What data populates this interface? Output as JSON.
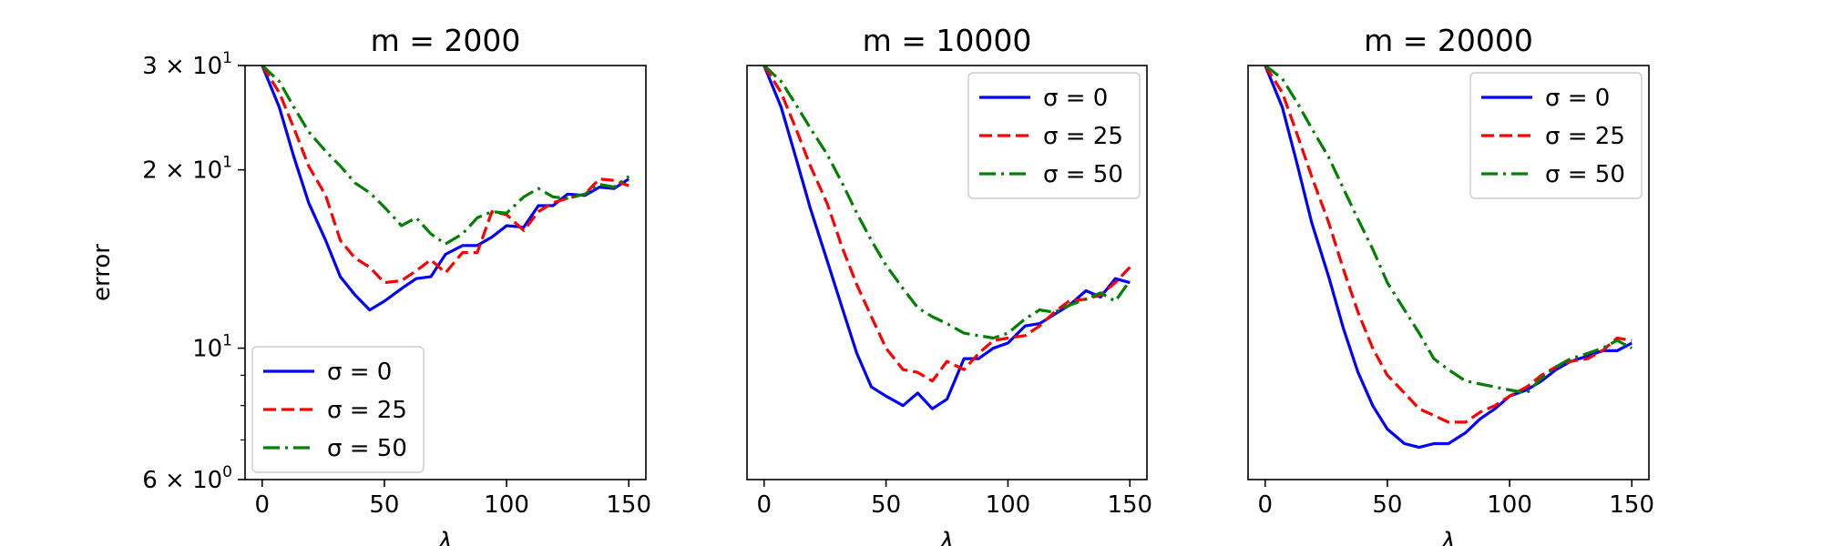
{
  "chart_data": [
    {
      "type": "line",
      "title": "m = 2000",
      "xlabel": "λ",
      "ylabel": "error",
      "xlim": [
        -7,
        157
      ],
      "ylim": [
        6,
        30
      ],
      "yscale": "log",
      "xticks": [
        0,
        50,
        100,
        150
      ],
      "xtick_labels": [
        "0",
        "50",
        "100",
        "150"
      ],
      "yticks": [
        6,
        10,
        20,
        30
      ],
      "ytick_labels": [
        {
          "base": "6 × 10",
          "exp": "0"
        },
        {
          "base": "10",
          "exp": "1"
        },
        {
          "base": "2 × 10",
          "exp": "1"
        },
        {
          "base": "3 × 10",
          "exp": "1"
        }
      ],
      "show_yticks": true,
      "legend": "lower-left",
      "series": [
        {
          "name": "σ = 0",
          "color": "#0000ff",
          "dash": "solid",
          "x": [
            0,
            7,
            13,
            19,
            26,
            32,
            38,
            44,
            50,
            57,
            63,
            69,
            75,
            82,
            88,
            94,
            100,
            107,
            113,
            119,
            125,
            132,
            138,
            144,
            150
          ],
          "y": [
            30,
            25.5,
            21,
            17.6,
            15.2,
            13.2,
            12.3,
            11.6,
            12,
            12.6,
            13.1,
            13.2,
            14.4,
            14.9,
            14.9,
            15.4,
            16.1,
            16.0,
            17.4,
            17.4,
            18.2,
            18.1,
            18.7,
            18.6,
            19.3
          ]
        },
        {
          "name": "σ = 25",
          "color": "#ff0000",
          "dash": "dashed",
          "x": [
            0,
            7,
            13,
            19,
            26,
            32,
            38,
            44,
            50,
            57,
            63,
            69,
            75,
            82,
            88,
            94,
            100,
            107,
            113,
            119,
            125,
            132,
            138,
            144,
            150
          ],
          "y": [
            30,
            27,
            23.5,
            20.3,
            18.1,
            15.2,
            14.2,
            13.7,
            12.9,
            13,
            13.5,
            14.1,
            13.4,
            14.5,
            14.5,
            17.0,
            16.8,
            15.8,
            17.0,
            17.6,
            17.9,
            18.2,
            19.3,
            19.2,
            18.8
          ]
        },
        {
          "name": "σ = 50",
          "color": "#008000",
          "dash": "dashdot",
          "x": [
            0,
            7,
            13,
            19,
            26,
            32,
            38,
            44,
            50,
            57,
            63,
            69,
            75,
            82,
            88,
            94,
            100,
            107,
            113,
            119,
            125,
            132,
            138,
            144,
            150
          ],
          "y": [
            30,
            28.2,
            25.5,
            23.2,
            21.5,
            20.3,
            19,
            18.3,
            17.3,
            16.1,
            16.6,
            15.6,
            15.0,
            15.6,
            16.6,
            17.0,
            16.9,
            18.0,
            18.6,
            18.0,
            17.9,
            18.2,
            18.9,
            18.7,
            19.5
          ]
        }
      ]
    },
    {
      "type": "line",
      "title": "m = 10000",
      "xlabel": "λ",
      "xlim": [
        -7,
        157
      ],
      "ylim": [
        6,
        30
      ],
      "yscale": "log",
      "xticks": [
        0,
        50,
        100,
        150
      ],
      "xtick_labels": [
        "0",
        "50",
        "100",
        "150"
      ],
      "show_yticks": false,
      "legend": "upper-right",
      "series": [
        {
          "name": "σ = 0",
          "color": "#0000ff",
          "dash": "solid",
          "x": [
            0,
            7,
            13,
            19,
            26,
            32,
            38,
            44,
            50,
            57,
            63,
            69,
            75,
            82,
            88,
            94,
            100,
            107,
            113,
            119,
            125,
            132,
            138,
            144,
            150
          ],
          "y": [
            30,
            25.5,
            21,
            17.2,
            14,
            11.7,
            9.8,
            8.6,
            8.3,
            8.0,
            8.4,
            7.9,
            8.2,
            9.6,
            9.6,
            10.0,
            10.2,
            10.9,
            11.0,
            11.4,
            11.8,
            12.5,
            12.2,
            13.1,
            12.9
          ]
        },
        {
          "name": "σ = 25",
          "color": "#ff0000",
          "dash": "dashed",
          "x": [
            0,
            7,
            13,
            19,
            26,
            32,
            38,
            44,
            50,
            57,
            63,
            69,
            75,
            82,
            88,
            94,
            100,
            107,
            113,
            119,
            125,
            132,
            138,
            144,
            150
          ],
          "y": [
            30,
            27,
            23.5,
            20.3,
            17.5,
            14.8,
            12.8,
            11.3,
            10.0,
            9.2,
            9.1,
            8.8,
            9.5,
            9.2,
            9.8,
            10.3,
            10.4,
            10.5,
            10.9,
            11.5,
            12.0,
            12.1,
            12.3,
            12.9,
            13.7
          ]
        },
        {
          "name": "σ = 50",
          "color": "#008000",
          "dash": "dashdot",
          "x": [
            0,
            7,
            13,
            19,
            26,
            32,
            38,
            44,
            50,
            57,
            63,
            69,
            75,
            82,
            88,
            94,
            100,
            107,
            113,
            119,
            125,
            132,
            138,
            144,
            150
          ],
          "y": [
            30,
            28.2,
            25.8,
            23.5,
            21.2,
            19.0,
            16.9,
            15.2,
            13.8,
            12.6,
            11.7,
            11.3,
            11.0,
            10.6,
            10.5,
            10.4,
            10.6,
            11.2,
            11.6,
            11.5,
            11.8,
            12.1,
            12.4,
            12.0,
            13.0
          ]
        }
      ]
    },
    {
      "type": "line",
      "title": "m = 20000",
      "xlabel": "λ",
      "xlim": [
        -7,
        157
      ],
      "ylim": [
        6,
        30
      ],
      "yscale": "log",
      "xticks": [
        0,
        50,
        100,
        150
      ],
      "xtick_labels": [
        "0",
        "50",
        "100",
        "150"
      ],
      "show_yticks": false,
      "legend": "upper-right",
      "series": [
        {
          "name": "σ = 0",
          "color": "#0000ff",
          "dash": "solid",
          "x": [
            0,
            7,
            13,
            19,
            26,
            32,
            38,
            44,
            50,
            57,
            63,
            69,
            75,
            82,
            88,
            94,
            100,
            107,
            113,
            119,
            125,
            132,
            138,
            144,
            150
          ],
          "y": [
            30,
            25.5,
            20.5,
            16.3,
            13.2,
            10.8,
            9.1,
            8.0,
            7.3,
            6.9,
            6.8,
            6.9,
            6.9,
            7.2,
            7.6,
            7.9,
            8.3,
            8.5,
            8.8,
            9.2,
            9.5,
            9.7,
            9.9,
            9.9,
            10.2
          ]
        },
        {
          "name": "σ = 25",
          "color": "#ff0000",
          "dash": "dashed",
          "x": [
            0,
            7,
            13,
            19,
            26,
            32,
            38,
            44,
            50,
            57,
            63,
            69,
            75,
            82,
            88,
            94,
            100,
            107,
            113,
            119,
            125,
            132,
            138,
            144,
            150
          ],
          "y": [
            30,
            27,
            23,
            19.5,
            16.3,
            13.6,
            11.5,
            10.0,
            9.0,
            8.4,
            7.9,
            7.7,
            7.5,
            7.5,
            7.8,
            8.0,
            8.3,
            8.6,
            9.0,
            9.3,
            9.5,
            9.6,
            9.9,
            10.4,
            10.3
          ]
        },
        {
          "name": "σ = 50",
          "color": "#008000",
          "dash": "dashdot",
          "x": [
            0,
            7,
            13,
            19,
            26,
            32,
            38,
            44,
            50,
            57,
            63,
            69,
            75,
            82,
            88,
            94,
            100,
            107,
            113,
            119,
            125,
            132,
            138,
            144,
            150
          ],
          "y": [
            30,
            28.5,
            26.0,
            23.5,
            21.0,
            18.6,
            16.5,
            14.7,
            12.9,
            11.6,
            10.6,
            9.6,
            9.2,
            8.8,
            8.7,
            8.6,
            8.5,
            8.4,
            8.9,
            9.3,
            9.6,
            9.8,
            10.0,
            10.3,
            10.0
          ]
        }
      ]
    }
  ]
}
